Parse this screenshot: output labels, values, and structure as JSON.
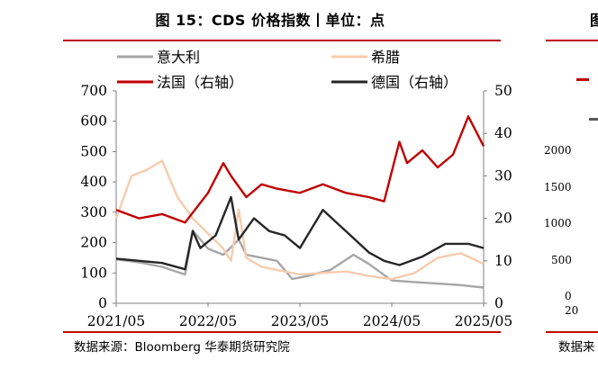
{
  "page": {
    "title": "图 15：CDS 价格指数丨单位：点",
    "source": "数据来源：Bloomberg 华泰期货研究院",
    "next_title_fragment": "图",
    "next_source_fragment": "数据来",
    "next_yticks": [
      "2000",
      "1500",
      "1000",
      "500",
      "0"
    ],
    "next_xtick_fragment": "20",
    "accent_color": "#c00000"
  },
  "chart_data": {
    "type": "line",
    "xlim": [
      "2021-05",
      "2025-05"
    ],
    "x_ticks": [
      "2021/05",
      "2022/05",
      "2023/05",
      "2024/05",
      "2025/05"
    ],
    "y_left": {
      "lim": [
        0,
        700
      ],
      "ticks": [
        0,
        100,
        200,
        300,
        400,
        500,
        600,
        700
      ]
    },
    "y_right": {
      "lim": [
        0,
        50
      ],
      "ticks": [
        0,
        10,
        20,
        30,
        40,
        50
      ]
    },
    "grid": false,
    "legend_position": "top",
    "series": [
      {
        "name": "意大利",
        "axis": "left",
        "color": "#a6a6a6",
        "x": [
          "2021-05",
          "2021-08",
          "2021-11",
          "2022-02",
          "2022-03",
          "2022-05",
          "2022-07",
          "2022-09",
          "2022-10",
          "2022-12",
          "2023-02",
          "2023-04",
          "2023-06",
          "2023-09",
          "2023-12",
          "2024-02",
          "2024-05",
          "2024-08",
          "2024-11",
          "2025-02",
          "2025-05"
        ],
        "y": [
          145,
          135,
          120,
          95,
          240,
          180,
          160,
          210,
          160,
          150,
          140,
          80,
          90,
          110,
          160,
          130,
          75,
          70,
          65,
          60,
          52
        ]
      },
      {
        "name": "希腊",
        "axis": "left",
        "color": "#f8cbad",
        "x": [
          "2021-05",
          "2021-07",
          "2021-09",
          "2021-11",
          "2022-01",
          "2022-03",
          "2022-05",
          "2022-07",
          "2022-08",
          "2022-09",
          "2022-10",
          "2022-12",
          "2023-02",
          "2023-05",
          "2023-08",
          "2023-11",
          "2024-02",
          "2024-05",
          "2024-08",
          "2024-11",
          "2025-02",
          "2025-05"
        ],
        "y": [
          280,
          420,
          440,
          470,
          350,
          280,
          230,
          180,
          140,
          310,
          150,
          120,
          110,
          95,
          100,
          105,
          90,
          80,
          100,
          150,
          165,
          130
        ]
      },
      {
        "name": "法国（右轴）",
        "axis": "right",
        "color": "#c00000",
        "x": [
          "2021-05",
          "2021-08",
          "2021-11",
          "2022-02",
          "2022-05",
          "2022-07",
          "2022-08",
          "2022-10",
          "2022-12",
          "2023-02",
          "2023-05",
          "2023-08",
          "2023-11",
          "2024-02",
          "2024-04",
          "2024-06",
          "2024-07",
          "2024-09",
          "2024-11",
          "2025-01",
          "2025-03",
          "2025-05"
        ],
        "y": [
          22,
          20,
          21,
          19,
          26,
          33,
          30,
          25,
          28,
          27,
          26,
          28,
          26,
          25,
          24,
          38,
          33,
          36,
          32,
          35,
          44,
          37
        ]
      },
      {
        "name": "德国（右轴）",
        "axis": "right",
        "color": "#262626",
        "x": [
          "2021-05",
          "2021-08",
          "2021-11",
          "2022-02",
          "2022-03",
          "2022-04",
          "2022-06",
          "2022-08",
          "2022-09",
          "2022-11",
          "2023-01",
          "2023-03",
          "2023-05",
          "2023-08",
          "2023-11",
          "2024-02",
          "2024-04",
          "2024-06",
          "2024-09",
          "2024-12",
          "2025-03",
          "2025-05"
        ],
        "y": [
          10.5,
          10,
          9.5,
          8,
          17,
          13,
          16,
          25,
          15,
          20,
          17,
          16,
          13,
          22,
          17,
          12,
          10,
          9,
          11,
          14,
          14,
          13
        ]
      }
    ]
  }
}
